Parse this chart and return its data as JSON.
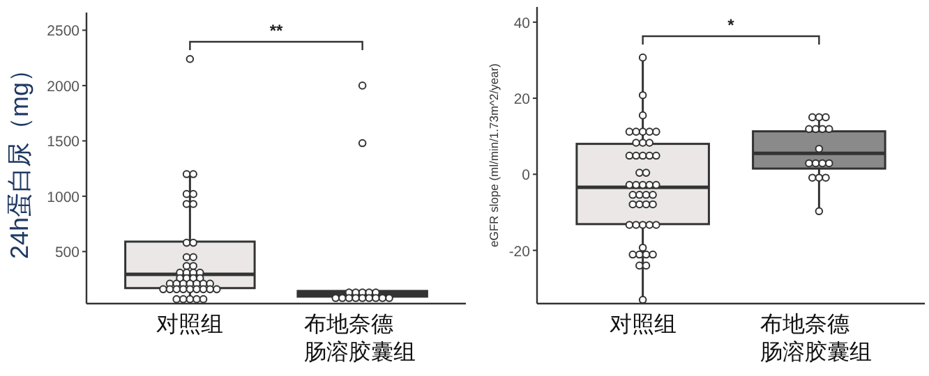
{
  "chart_data": [
    {
      "type": "box",
      "ylabel": "24h蛋白尿（mg）",
      "categories": [
        "对照组",
        "布地奈德肠溶胶囊组"
      ],
      "ylim": [
        30,
        2660
      ],
      "yticks": [
        500,
        1000,
        1500,
        2000,
        2500
      ],
      "annotations": [
        "**"
      ],
      "boxes": [
        {
          "low": 70,
          "q1": 170,
          "median": 295,
          "q3": 590,
          "high": 1200
        },
        {
          "low": 90,
          "q1": 93,
          "median": 120,
          "q3": 144,
          "high": 144
        }
      ],
      "colors": [
        "#ebe7e7",
        "#3a3a3a"
      ],
      "series": [
        {
          "type": "scatter",
          "color": "#ffffff",
          "x": [
            "对照组",
            "对照组",
            "对照组",
            "对照组",
            "对照组",
            "对照组",
            "对照组",
            "对照组",
            "对照组",
            "对照组",
            "对照组",
            "对照组",
            "对照组",
            "对照组",
            "对照组",
            "对照组",
            "对照组",
            "对照组",
            "对照组",
            "对照组",
            "对照组",
            "对照组",
            "对照组",
            "对照组",
            "对照组",
            "对照组",
            "对照组",
            "对照组",
            "对照组",
            "对照组",
            "对照组",
            "对照组",
            "对照组",
            "对照组",
            "对照组",
            "对照组",
            "对照组",
            "对照组",
            "对照组",
            "对照组",
            "对照组",
            "对照组",
            "布地奈德肠溶胶囊组",
            "布地奈德肠溶胶囊组",
            "布地奈德肠溶胶囊组",
            "布地奈德肠溶胶囊组",
            "布地奈德肠溶胶囊组",
            "布地奈德肠溶胶囊组",
            "布地奈德肠溶胶囊组",
            "布地奈德肠溶胶囊组",
            "布地奈德肠溶胶囊组",
            "布地奈德肠溶胶囊组",
            "布地奈德肠溶胶囊组",
            "布地奈德肠溶胶囊组",
            "布地奈德肠溶胶囊组",
            "布地奈德肠溶胶囊组",
            "布地奈德肠溶胶囊组",
            "布地奈德肠溶胶囊组"
          ],
          "values": [
            2240,
            1200,
            1200,
            1020,
            1020,
            930,
            930,
            580,
            580,
            450,
            450,
            370,
            370,
            310,
            310,
            310,
            310,
            260,
            260,
            260,
            260,
            210,
            210,
            210,
            210,
            210,
            210,
            210,
            160,
            160,
            160,
            160,
            160,
            160,
            160,
            160,
            160,
            70,
            70,
            70,
            70,
            70,
            2000,
            1480,
            130,
            130,
            130,
            130,
            130,
            80,
            80,
            80,
            80,
            80,
            80,
            80,
            80,
            80
          ]
        }
      ]
    },
    {
      "type": "box",
      "ylabel": "eGFR slope (ml/min/1.73m^2/year)",
      "categories": [
        "对照组",
        "布地奈德肠溶胶囊组"
      ],
      "ylim": [
        -34,
        44
      ],
      "yticks": [
        -20,
        0,
        20,
        40
      ],
      "annotations": [
        "*"
      ],
      "boxes": [
        {
          "low": -33,
          "q1": -13.1,
          "median": -3.4,
          "q3": 8.0,
          "high": 30.7
        },
        {
          "low": -9.7,
          "q1": 1.5,
          "median": 5.5,
          "q3": 11.3,
          "high": 15
        }
      ],
      "colors": [
        "#ebe7e7",
        "#8a8a8a"
      ],
      "series": [
        {
          "type": "scatter",
          "color": "#ffffff",
          "x": [
            "对照组",
            "对照组",
            "对照组",
            "对照组",
            "对照组",
            "对照组",
            "对照组",
            "对照组",
            "对照组",
            "对照组",
            "对照组",
            "对照组",
            "对照组",
            "对照组",
            "对照组",
            "对照组",
            "对照组",
            "对照组",
            "对照组",
            "对照组",
            "对照组",
            "对照组",
            "对照组",
            "对照组",
            "对照组",
            "对照组",
            "对照组",
            "对照组",
            "对照组",
            "对照组",
            "对照组",
            "对照组",
            "对照组",
            "对照组",
            "对照组",
            "对照组",
            "对照组",
            "对照组",
            "对照组",
            "对照组",
            "对照组",
            "对照组",
            "对照组",
            "对照组",
            "布地奈德肠溶胶囊组",
            "布地奈德肠溶胶囊组",
            "布地奈德肠溶胶囊组",
            "布地奈德肠溶胶囊组",
            "布地奈德肠溶胶囊组",
            "布地奈德肠溶胶囊组",
            "布地奈德肠溶胶囊组",
            "布地奈德肠溶胶囊组",
            "布地奈德肠溶胶囊组",
            "布地奈德肠溶胶囊组",
            "布地奈德肠溶胶囊组",
            "布地奈德肠溶胶囊组",
            "布地奈德肠溶胶囊组",
            "布地奈德肠溶胶囊组",
            "布地奈德肠溶胶囊组",
            "布地奈德肠溶胶囊组"
          ],
          "values": [
            30.7,
            20.8,
            15.5,
            11.2,
            11.2,
            11.2,
            11.2,
            11.2,
            8.3,
            8.3,
            8.3,
            4.9,
            4.9,
            4.9,
            4.9,
            4.9,
            0.4,
            0.4,
            -2.8,
            -2.8,
            -2.8,
            -2.8,
            -2.8,
            -5.4,
            -5.4,
            -5.4,
            -5.4,
            -7.9,
            -7.9,
            -7.9,
            -7.9,
            -13.3,
            -13.3,
            -13.3,
            -13.3,
            -13.3,
            -19.3,
            -21.1,
            -21.1,
            -21.1,
            -21.1,
            -24,
            -24,
            -33,
            15,
            15,
            15,
            11.9,
            11.9,
            11.9,
            11.9,
            6.7,
            2.9,
            2.9,
            2.9,
            2.9,
            -0.9,
            -0.9,
            -0.9,
            -9.7
          ]
        }
      ]
    }
  ]
}
